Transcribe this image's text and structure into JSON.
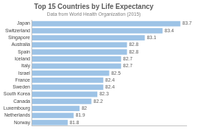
{
  "chart_data": {
    "type": "bar",
    "orientation": "horizontal",
    "title": "Top 15 Countries by Life Expectancy",
    "subtitle": "Data from World Health Organization (2015)",
    "categories": [
      "Japan",
      "Switzerland",
      "Singapore",
      "Australia",
      "Spain",
      "Iceland",
      "Italy",
      "Israel",
      "France",
      "Sweden",
      "South Korea",
      "Canada",
      "Luxembourg",
      "Netherlands",
      "Norway"
    ],
    "values": [
      83.7,
      83.4,
      83.1,
      82.8,
      82.8,
      82.7,
      82.7,
      82.5,
      82.4,
      82.4,
      82.3,
      82.2,
      82,
      81.9,
      81.8
    ],
    "color": "#9dc3e6",
    "xlim": [
      81.2,
      83.8
    ],
    "grid": false,
    "data_labels": true,
    "tick_labels": "y"
  }
}
